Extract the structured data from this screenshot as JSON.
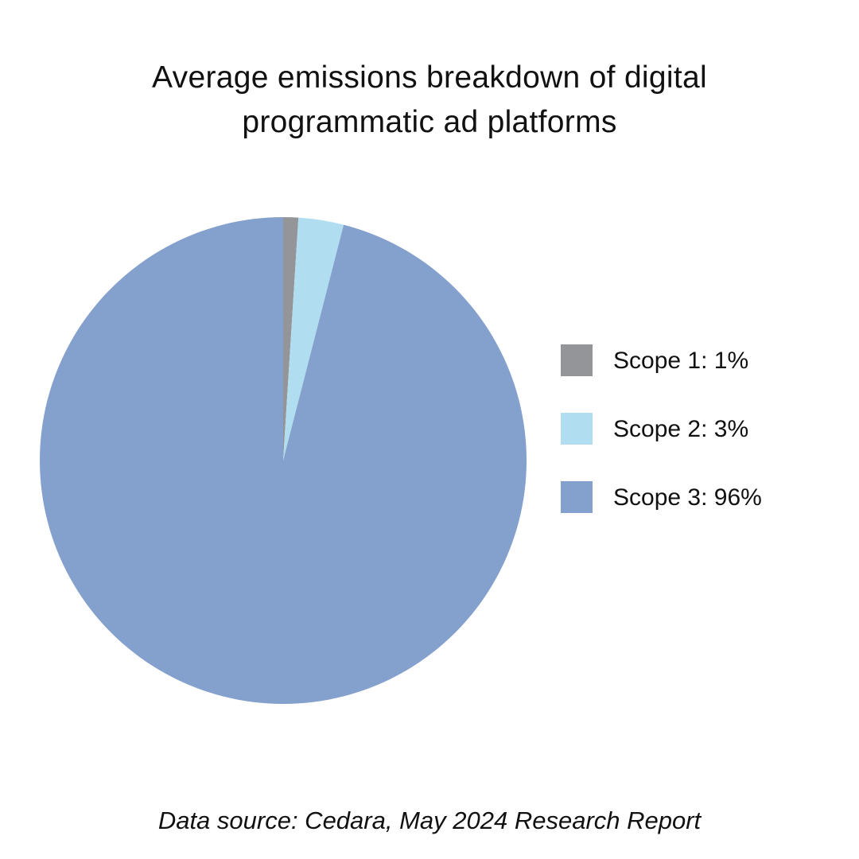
{
  "chart_data": {
    "type": "pie",
    "title_lines": [
      "Average emissions breakdown of digital",
      "programmatic ad platforms"
    ],
    "categories": [
      "Scope 1",
      "Scope 2",
      "Scope 3"
    ],
    "values": [
      1,
      3,
      96
    ],
    "unit": "%",
    "colors": [
      "#939598",
      "#b1ddf1",
      "#84a0cc"
    ],
    "legend": {
      "placement": "right",
      "labels": [
        "Scope 1: 1%",
        "Scope 2: 3%",
        "Scope 3: 96%"
      ]
    },
    "source": "Data source: Cedara, May 2024 Research Report"
  }
}
